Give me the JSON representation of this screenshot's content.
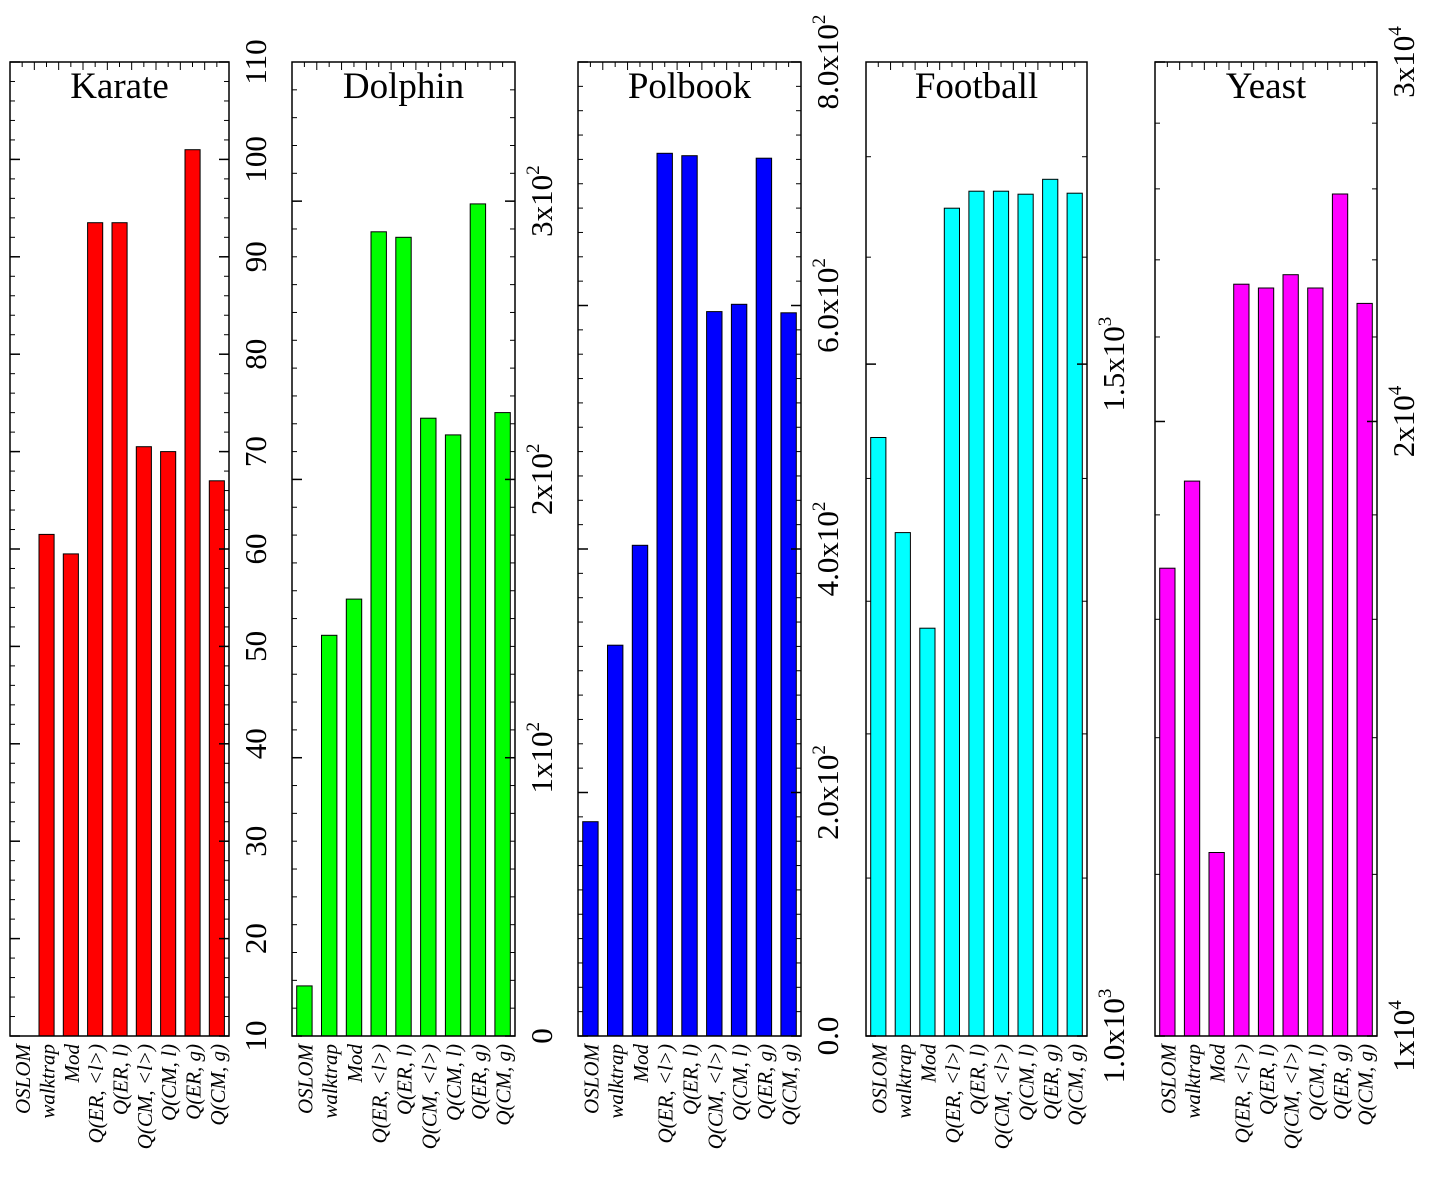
{
  "categories": [
    "OSLOM",
    "walktrap",
    "Mod",
    "Q(ER, <l>)",
    "Q(ER, l)",
    "Q(CM, <l>)",
    "Q(CM, l)",
    "Q(ER, g)",
    "Q(CM, g)"
  ],
  "chart_data": [
    {
      "type": "bar",
      "title": "Karate",
      "color": "#ff0000",
      "scale": "linear",
      "ylim": [
        10,
        110
      ],
      "ticks": [
        {
          "v": 10,
          "label": "10"
        },
        {
          "v": 20,
          "label": "20"
        },
        {
          "v": 30,
          "label": "30"
        },
        {
          "v": 40,
          "label": "40"
        },
        {
          "v": 50,
          "label": "50"
        },
        {
          "v": 60,
          "label": "60"
        },
        {
          "v": 70,
          "label": "70"
        },
        {
          "v": 80,
          "label": "80"
        },
        {
          "v": 90,
          "label": "90"
        },
        {
          "v": 100,
          "label": "100"
        },
        {
          "v": 110,
          "label": "110"
        }
      ],
      "minor_step": 2,
      "values": [
        10,
        61.5,
        59.5,
        93.5,
        93.5,
        70.5,
        70,
        101,
        67
      ]
    },
    {
      "type": "bar",
      "title": "Dolphin",
      "color": "#00ff00",
      "scale": "linear",
      "ylim": [
        0,
        350
      ],
      "ticks": [
        {
          "v": 0,
          "label": "0"
        },
        {
          "v": 100,
          "label": "1x10^2"
        },
        {
          "v": 200,
          "label": "2x10^2"
        },
        {
          "v": 300,
          "label": "3x10^2"
        }
      ],
      "minor_step": 10,
      "values": [
        18,
        144,
        157,
        289,
        287,
        222,
        216,
        299,
        224
      ]
    },
    {
      "type": "bar",
      "title": "Polbook",
      "color": "#0000ff",
      "scale": "linear",
      "ylim": [
        0,
        800
      ],
      "ticks": [
        {
          "v": 0,
          "label": "0.0"
        },
        {
          "v": 200,
          "label": "2.0x10^2"
        },
        {
          "v": 400,
          "label": "4.0x10^2"
        },
        {
          "v": 600,
          "label": "6.0x10^2"
        },
        {
          "v": 800,
          "label": "8.0x10^2"
        }
      ],
      "minor_step": 20,
      "values": [
        176,
        321,
        403,
        725,
        723,
        595,
        601,
        721,
        594
      ]
    },
    {
      "type": "bar",
      "title": "Football",
      "color": "#00ffff",
      "scale": "log",
      "ylim": [
        1000,
        1800
      ],
      "ticks": [
        {
          "v": 1000,
          "label": "1.0x10^3"
        },
        {
          "v": 1500,
          "label": "1.5x10^3"
        }
      ],
      "minor_ticks": [
        1100,
        1200,
        1300,
        1400,
        1600,
        1700,
        1800
      ],
      "values": [
        1435,
        1355,
        1279,
        1648,
        1665,
        1665,
        1662,
        1677,
        1663
      ]
    },
    {
      "type": "bar",
      "title": "Yeast",
      "color": "#ff00ff",
      "scale": "log",
      "ylim": [
        10000,
        30000
      ],
      "ticks": [
        {
          "v": 10000,
          "label": "1x10^4"
        },
        {
          "v": 20000,
          "label": "2x10^4"
        },
        {
          "v": 30000,
          "label": "3x10^4"
        }
      ],
      "minor_ticks": [
        12000,
        14000,
        16000,
        18000,
        22000,
        24000,
        26000,
        28000
      ],
      "values": [
        16950,
        18700,
        12300,
        23350,
        23250,
        23600,
        23250,
        25850,
        22850
      ]
    }
  ]
}
